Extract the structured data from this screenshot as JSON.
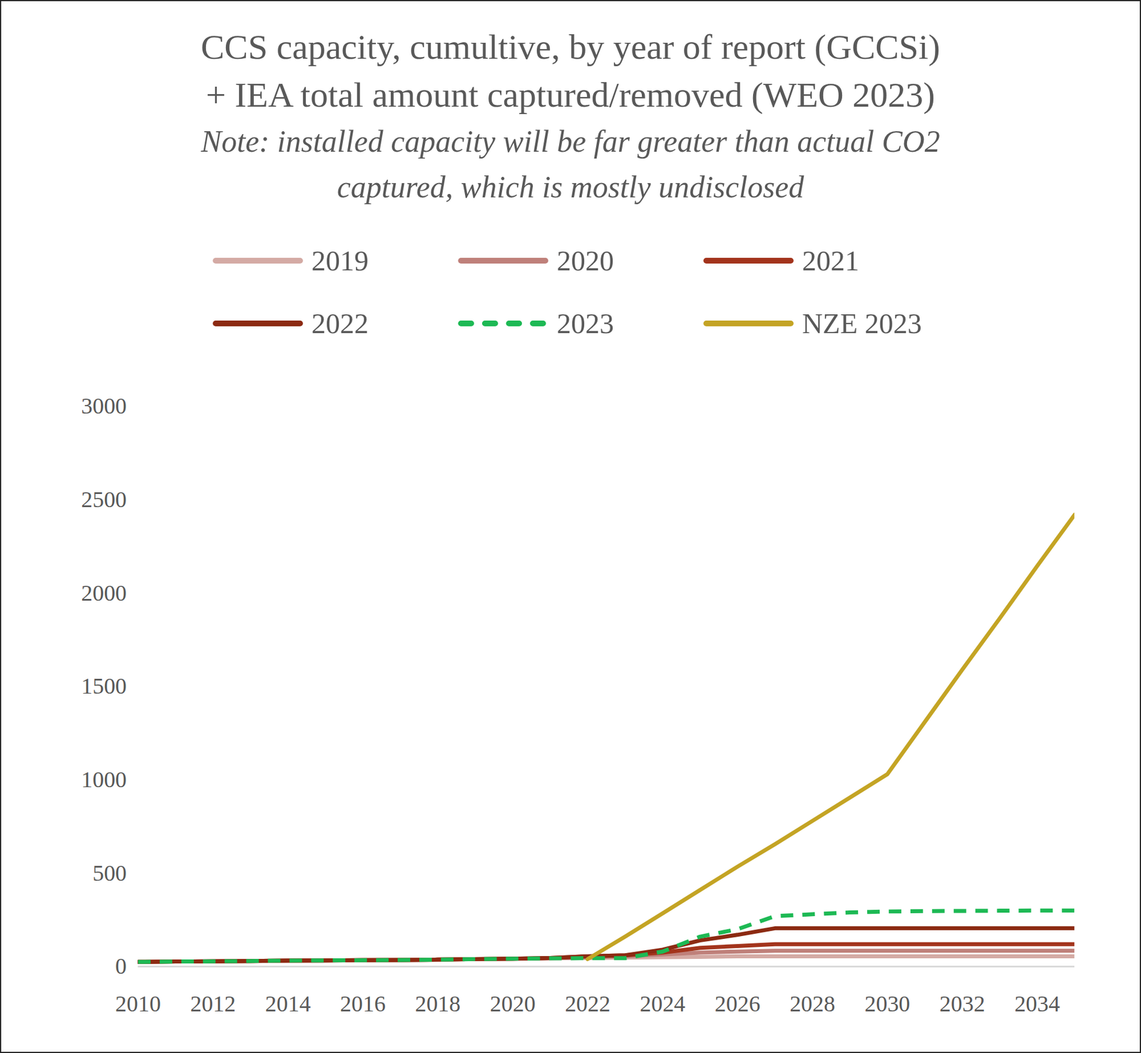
{
  "chart_data": {
    "type": "line",
    "title": "CCS capacity, cumultive, by year of report (GCCSi)\n+ IEA total amount captured/removed (WEO 2023)",
    "subtitle": "Note: installed capacity will be far greater than actual CO2\ncaptured, which is mostly undisclosed",
    "legend": "top",
    "grid": false,
    "x": [
      2010,
      2011,
      2012,
      2013,
      2014,
      2015,
      2016,
      2017,
      2018,
      2019,
      2020,
      2021,
      2022,
      2023,
      2024,
      2025,
      2026,
      2027,
      2028,
      2029,
      2030,
      2031,
      2032,
      2033,
      2034,
      2035
    ],
    "xlim": [
      2010,
      2035
    ],
    "xticks": [
      2010,
      2012,
      2014,
      2016,
      2018,
      2020,
      2022,
      2024,
      2026,
      2028,
      2030,
      2032,
      2034
    ],
    "ylim": [
      0,
      3000
    ],
    "yticks": [
      0,
      500,
      1000,
      1500,
      2000,
      2500,
      3000
    ],
    "series": [
      {
        "name": "2019",
        "color": "#d4aaa4",
        "line_style": "solid",
        "values": [
          25,
          27,
          28,
          30,
          32,
          33,
          34,
          35,
          37,
          40,
          42,
          44,
          46,
          48,
          50,
          52,
          55,
          55,
          55,
          55,
          55,
          55,
          55,
          55,
          55,
          55
        ]
      },
      {
        "name": "2020",
        "color": "#bf807a",
        "line_style": "solid",
        "values": [
          25,
          27,
          28,
          30,
          32,
          33,
          34,
          35,
          37,
          40,
          42,
          45,
          50,
          55,
          65,
          75,
          80,
          85,
          85,
          85,
          85,
          85,
          85,
          85,
          85,
          85
        ]
      },
      {
        "name": "2021",
        "color": "#a3341c",
        "line_style": "solid",
        "values": [
          25,
          27,
          28,
          30,
          32,
          33,
          34,
          35,
          37,
          40,
          42,
          46,
          55,
          60,
          75,
          100,
          110,
          120,
          120,
          120,
          120,
          120,
          120,
          120,
          120,
          120
        ]
      },
      {
        "name": "2022",
        "color": "#8c2a12",
        "line_style": "solid",
        "values": [
          25,
          27,
          28,
          30,
          32,
          33,
          34,
          35,
          37,
          40,
          42,
          46,
          55,
          60,
          90,
          140,
          170,
          205,
          205,
          205,
          205,
          205,
          205,
          205,
          205,
          205
        ]
      },
      {
        "name": "2023",
        "color": "#1db954",
        "line_style": "dashed",
        "values": [
          25,
          27,
          28,
          30,
          32,
          33,
          34,
          35,
          37,
          40,
          42,
          44,
          45,
          45,
          80,
          160,
          200,
          270,
          280,
          290,
          295,
          297,
          298,
          299,
          300,
          300
        ]
      },
      {
        "name": "NZE 2023",
        "color": "#c4a424",
        "line_style": "solid",
        "values": [
          null,
          null,
          null,
          null,
          null,
          null,
          null,
          null,
          null,
          null,
          null,
          null,
          40,
          160,
          285,
          410,
          535,
          655,
          780,
          905,
          1030,
          1310,
          1590,
          1865,
          2145,
          2420
        ]
      }
    ]
  }
}
